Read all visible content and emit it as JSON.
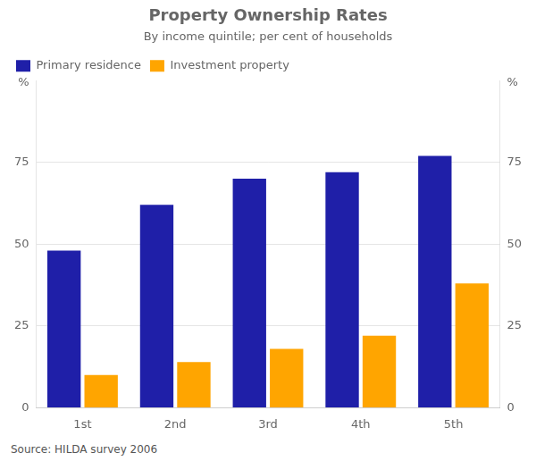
{
  "chart_data": {
    "type": "bar",
    "title": "Property Ownership Rates",
    "subtitle": "By income quintile; per cent of households",
    "categories": [
      "1st",
      "2nd",
      "3rd",
      "4th",
      "5th"
    ],
    "series": [
      {
        "name": "Primary residence",
        "color": "#1f1fa8",
        "values": [
          48,
          62,
          70,
          72,
          77
        ]
      },
      {
        "name": "Investment property",
        "color": "#FFA500",
        "values": [
          10,
          14,
          18,
          22,
          38
        ]
      }
    ],
    "ylim": [
      0,
      100
    ],
    "yticks": [
      0,
      25,
      50,
      75
    ],
    "y2lim": [
      0,
      100
    ],
    "y2ticks": [
      0,
      25,
      50,
      75
    ],
    "ylabel": "%",
    "y2label": "%",
    "source": "Source: HILDA survey 2006",
    "grid": true,
    "legend": "upper left"
  }
}
